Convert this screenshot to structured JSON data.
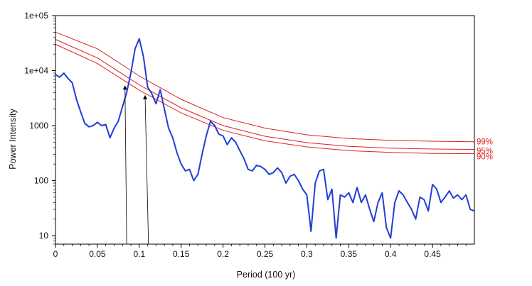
{
  "chart_data": {
    "type": "line",
    "title": "",
    "xlabel": "Period (100 yr)",
    "ylabel": "Power Intensity",
    "x_scale": "linear",
    "y_scale": "log",
    "xlim": [
      0,
      0.5
    ],
    "ylim": [
      7,
      100000
    ],
    "grid": false,
    "x_ticks": [
      0,
      0.05,
      0.1,
      0.15,
      0.2,
      0.25,
      0.3,
      0.35,
      0.4,
      0.45
    ],
    "x_tick_labels": [
      "0",
      "0.05",
      "0.1",
      "0.15",
      "0.2",
      "0.25",
      "0.3",
      "0.35",
      "0.4",
      "0.45"
    ],
    "y_ticks": [
      10,
      100,
      1000,
      10000,
      100000
    ],
    "y_tick_labels": [
      "10",
      "100",
      "1000",
      "1e+04",
      "1e+05"
    ],
    "colors": {
      "spectrum": "#1f3fd6",
      "significance": "#e02020",
      "peak_marker": "#000000",
      "frame": "#000000"
    },
    "spectrum": {
      "x": [
        0,
        0.005,
        0.01,
        0.015,
        0.02,
        0.025,
        0.03,
        0.035,
        0.04,
        0.045,
        0.05,
        0.055,
        0.06,
        0.065,
        0.07,
        0.075,
        0.08,
        0.085,
        0.09,
        0.095,
        0.1,
        0.105,
        0.11,
        0.115,
        0.12,
        0.125,
        0.13,
        0.135,
        0.14,
        0.145,
        0.15,
        0.155,
        0.16,
        0.165,
        0.17,
        0.175,
        0.18,
        0.185,
        0.19,
        0.195,
        0.2,
        0.205,
        0.21,
        0.215,
        0.22,
        0.225,
        0.23,
        0.235,
        0.24,
        0.245,
        0.25,
        0.255,
        0.26,
        0.265,
        0.27,
        0.275,
        0.28,
        0.285,
        0.29,
        0.295,
        0.3,
        0.305,
        0.31,
        0.315,
        0.32,
        0.325,
        0.33,
        0.335,
        0.34,
        0.345,
        0.35,
        0.355,
        0.36,
        0.365,
        0.37,
        0.375,
        0.38,
        0.385,
        0.39,
        0.395,
        0.4,
        0.405,
        0.41,
        0.415,
        0.42,
        0.425,
        0.43,
        0.435,
        0.44,
        0.445,
        0.45,
        0.455,
        0.46,
        0.465,
        0.47,
        0.475,
        0.48,
        0.485,
        0.49,
        0.495,
        0.5
      ],
      "y": [
        8500,
        7600,
        9000,
        7200,
        6000,
        3000,
        1800,
        1100,
        950,
        1000,
        1150,
        1000,
        1050,
        600,
        900,
        1200,
        2200,
        4000,
        9000,
        25000,
        38000,
        18000,
        5000,
        3800,
        2500,
        4500,
        2000,
        900,
        600,
        320,
        200,
        150,
        160,
        100,
        130,
        300,
        650,
        1200,
        1000,
        700,
        650,
        450,
        600,
        500,
        350,
        250,
        160,
        150,
        190,
        180,
        160,
        130,
        140,
        170,
        140,
        90,
        120,
        130,
        100,
        70,
        55,
        12,
        90,
        150,
        160,
        45,
        70,
        9,
        55,
        50,
        60,
        40,
        75,
        40,
        55,
        30,
        18,
        40,
        60,
        14,
        9,
        40,
        65,
        55,
        40,
        30,
        20,
        50,
        45,
        28,
        85,
        70,
        40,
        50,
        65,
        48,
        55,
        45,
        55,
        30,
        28
      ]
    },
    "significance_levels": [
      {
        "label": "99%",
        "x": [
          0,
          0.05,
          0.1,
          0.15,
          0.2,
          0.25,
          0.3,
          0.35,
          0.4,
          0.45,
          0.5
        ],
        "y": [
          50000,
          25000,
          8000,
          3000,
          1400,
          900,
          680,
          580,
          540,
          520,
          510
        ]
      },
      {
        "label": "95%",
        "x": [
          0,
          0.05,
          0.1,
          0.15,
          0.2,
          0.25,
          0.3,
          0.35,
          0.4,
          0.45,
          0.5
        ],
        "y": [
          37000,
          17000,
          5500,
          2100,
          1000,
          640,
          490,
          420,
          390,
          375,
          370
        ]
      },
      {
        "label": "90%",
        "x": [
          0,
          0.05,
          0.1,
          0.15,
          0.2,
          0.25,
          0.3,
          0.35,
          0.4,
          0.45,
          0.5
        ],
        "y": [
          30000,
          13500,
          4400,
          1700,
          820,
          530,
          410,
          350,
          325,
          312,
          308
        ]
      }
    ],
    "peak_markers": [
      {
        "x": 0.083,
        "y": 4800,
        "x_drop": 0.085
      },
      {
        "x": 0.107,
        "y": 3200,
        "x_drop": 0.111
      }
    ]
  }
}
